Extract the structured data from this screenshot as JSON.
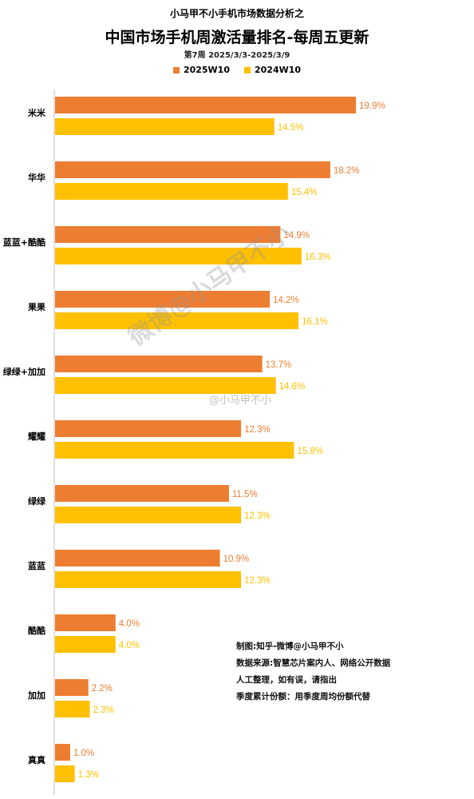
{
  "header": {
    "suptitle": "小马甲不小手机市场数据分析之",
    "title": "中国市场手机周激活量排名-每周五更新",
    "subtitle": "第7周 2025/3/3-2025/3/9"
  },
  "colors": {
    "s2025": "#ED7D31",
    "s2024": "#FFC000",
    "axis": "#bfbfbf"
  },
  "chart_data": {
    "type": "bar",
    "orientation": "horizontal",
    "categories": [
      "米米",
      "华华",
      "蓝蓝+酷酷",
      "果果",
      "绿绿+加加",
      "耀耀",
      "绿绿",
      "蓝蓝",
      "酷酷",
      "加加",
      "真真"
    ],
    "series": [
      {
        "name": "2025W10",
        "values": [
          19.9,
          18.2,
          14.9,
          14.2,
          13.7,
          12.3,
          11.5,
          10.9,
          4.0,
          2.2,
          1.0
        ],
        "labels": [
          "19.9%",
          "18.2%",
          "14.9%",
          "14.2%",
          "13.7%",
          "12.3%",
          "11.5%",
          "10.9%",
          "4.0%",
          "2.2%",
          "1.0%"
        ]
      },
      {
        "name": "2024W10",
        "values": [
          14.5,
          15.4,
          16.3,
          16.1,
          14.6,
          15.8,
          12.3,
          12.3,
          4.0,
          2.3,
          1.3
        ],
        "labels": [
          "14.5%",
          "15.4%",
          "16.3%",
          "16.1%",
          "14.6%",
          "15.8%",
          "12.3%",
          "12.3%",
          "4.0%",
          "2.3%",
          "1.3%"
        ]
      }
    ],
    "xlim": [
      0,
      22
    ],
    "legend_position": "top-center"
  },
  "notes": [
    "制图:知乎-微博@小马甲不小",
    "数据来源:智慧芯片案内人、网络公开数据",
    "人工整理，如有误，请指出",
    "季度累计份额：用季度周均份额代替"
  ],
  "watermarks": {
    "big": "微博@小马甲不小",
    "small": "@小马甲不小"
  }
}
